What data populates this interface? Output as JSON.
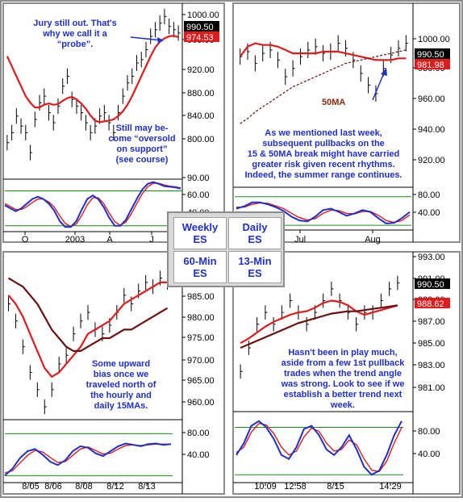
{
  "colors": {
    "price": "#000000",
    "ma_fast": "#e01b1b",
    "ma_slow": "#6b0f0f",
    "osc_blue": "#1f2fc8",
    "osc_red": "#e01b1b",
    "osc_band": "#1a8a1a",
    "annotation": "#1f2fc8",
    "badge_black": "#000000",
    "badge_red": "#e01b1b"
  },
  "legend": {
    "weekly": {
      "line1": "Weekly",
      "line2": "ES"
    },
    "daily": {
      "line1": "Daily",
      "line2": "ES"
    },
    "min60": {
      "line1": "60-Min",
      "line2": "ES"
    },
    "min13": {
      "line1": "13-Min",
      "line2": "ES"
    }
  },
  "chart_data": [
    {
      "type": "line",
      "id": "weekly",
      "title": "",
      "y_ticks": [
        1000.0,
        960.0,
        920.0,
        880.0,
        840.0,
        800.0
      ],
      "ylim": [
        760,
        1020
      ],
      "x_ticks": [
        "O",
        "2003",
        "A",
        "J"
      ],
      "price_badges": [
        "990.50",
        "974.53"
      ],
      "price": [
        815,
        830,
        855,
        840,
        830,
        800,
        850,
        875,
        885,
        860,
        845,
        870,
        900,
        915,
        880,
        870,
        860,
        845,
        830,
        840,
        855,
        860,
        845,
        830,
        860,
        885,
        905,
        915,
        935,
        940,
        955,
        975,
        985,
        995,
        1005,
        990,
        985,
        980
      ],
      "ma": [
        945,
        930,
        915,
        900,
        885,
        875,
        868,
        868,
        872,
        874,
        872,
        873,
        878,
        882,
        884,
        880,
        874,
        866,
        856,
        848,
        846,
        847,
        848,
        850,
        855,
        862,
        872,
        885,
        900,
        915,
        930,
        945,
        958,
        967,
        972,
        975,
        976,
        974
      ],
      "oscillator": {
        "y_ticks": [
          90.0,
          60.0,
          40.0
        ],
        "ylim": [
          10,
          100
        ],
        "upper_band": 80,
        "lower_band": 20,
        "fast": [
          55,
          50,
          45,
          50,
          58,
          66,
          70,
          66,
          58,
          46,
          28,
          18,
          18,
          28,
          48,
          66,
          72,
          66,
          52,
          34,
          20,
          20,
          30,
          48,
          66,
          82,
          92,
          95,
          92,
          88,
          87,
          86,
          84
        ],
        "slow": [
          58,
          53,
          48,
          48,
          53,
          60,
          66,
          66,
          61,
          52,
          37,
          24,
          19,
          23,
          38,
          56,
          68,
          68,
          58,
          42,
          27,
          21,
          26,
          40,
          58,
          75,
          87,
          93,
          93,
          90,
          88,
          87,
          85
        ]
      },
      "annotations": [
        {
          "text": [
            "Jury still out.  That's",
            "why we call it a",
            "“probe”."
          ]
        },
        {
          "text": [
            "Still may be-",
            "come “oversold",
            "on support”",
            "(see course)"
          ]
        }
      ]
    },
    {
      "type": "line",
      "id": "daily",
      "title": "",
      "y_ticks": [
        1000.0,
        980.0,
        960.0,
        940.0,
        920.0
      ],
      "ylim": [
        904,
        1012
      ],
      "x_ticks": [
        "Jul",
        "Aug"
      ],
      "price_badges": [
        "990.50",
        "981.98"
      ],
      "price": [
        982,
        985,
        978,
        984,
        986,
        980,
        970,
        975,
        982,
        986,
        988,
        984,
        985,
        990,
        987,
        980,
        972,
        965,
        960,
        975,
        983,
        987,
        990
      ],
      "ma_fast": [
        982,
        988,
        990,
        989,
        989,
        988,
        986,
        984,
        984,
        984,
        984,
        985,
        985,
        985,
        984,
        983,
        982,
        981,
        980,
        980,
        980,
        981,
        981
      ],
      "ma_slow_label": "50MA",
      "ma_slow": [
        942,
        945,
        949,
        952,
        955,
        958,
        961,
        964,
        966,
        968,
        970,
        972,
        974,
        976,
        978,
        979,
        980,
        981,
        982,
        983,
        984,
        985,
        986
      ],
      "oscillator": {
        "y_ticks": [
          80.0,
          40.0
        ],
        "ylim": [
          10,
          100
        ],
        "upper_band": 80,
        "lower_band": 20,
        "fast": [
          55,
          60,
          68,
          68,
          64,
          58,
          50,
          38,
          30,
          28,
          38,
          52,
          55,
          48,
          40,
          45,
          52,
          48,
          35,
          24,
          25,
          35,
          48
        ],
        "slow": [
          58,
          58,
          64,
          67,
          66,
          61,
          55,
          45,
          36,
          31,
          34,
          45,
          52,
          51,
          45,
          44,
          49,
          49,
          41,
          30,
          26,
          30,
          42
        ]
      },
      "annotations": [
        {
          "text": [
            "As we mentioned last week,",
            "subsequent pullbacks on the",
            "15 & 50MA break might have carried",
            "greater risk given recent rhythms.",
            "Indeed, the summer range continues."
          ]
        }
      ]
    },
    {
      "type": "line",
      "id": "min60",
      "title": "",
      "y_ticks": [
        985.0,
        980.0,
        975.0,
        970.0,
        965.0,
        960.0
      ],
      "ylim": [
        955,
        993
      ],
      "x_ticks": [
        "8/05",
        "8/06",
        "8/08",
        "8/12",
        "8/13"
      ],
      "price": [
        982,
        978,
        972,
        966,
        962,
        958,
        962,
        968,
        970,
        975,
        978,
        980,
        976,
        975,
        977,
        980,
        984,
        982,
        985,
        987,
        986,
        988,
        987
      ],
      "ma_fast": [
        984,
        982,
        979,
        975,
        971,
        967,
        965,
        966,
        968,
        970,
        972,
        975,
        976,
        977,
        978,
        980,
        982,
        983,
        984,
        985,
        986,
        987,
        987
      ],
      "ma_slow": [
        988,
        987,
        986,
        984,
        982,
        979,
        976,
        974,
        972,
        971,
        971,
        972,
        973,
        974,
        974,
        975,
        976,
        976,
        977,
        978,
        979,
        980,
        981
      ],
      "oscillator": {
        "y_ticks": [
          80.0,
          40.0
        ],
        "ylim": [
          10,
          100
        ],
        "upper_band": 80,
        "lower_band": 20,
        "fast": [
          20,
          30,
          45,
          55,
          58,
          50,
          40,
          35,
          42,
          55,
          62,
          60,
          52,
          48,
          55,
          62,
          66,
          64,
          62,
          65,
          66,
          64,
          65
        ],
        "slow": [
          24,
          27,
          38,
          49,
          56,
          54,
          46,
          39,
          40,
          49,
          58,
          61,
          56,
          51,
          52,
          58,
          63,
          64,
          63,
          64,
          65,
          65,
          65
        ]
      },
      "annotations": [
        {
          "text": [
            "Some upward",
            "bias once we",
            "traveled north of",
            "the hourly and",
            "daily 15MAs."
          ]
        }
      ]
    },
    {
      "type": "line",
      "id": "min13",
      "title": "",
      "y_ticks": [
        993.0,
        991.0,
        989.0,
        987.0,
        985.0,
        983.0,
        981.0
      ],
      "ylim": [
        979.6,
        993.0
      ],
      "x_ticks": [
        "10:09",
        "12:58",
        "8/15",
        "14:29"
      ],
      "price_badges": [
        "990.50",
        "988.62"
      ],
      "price": [
        983,
        985,
        987,
        988,
        987,
        988,
        989,
        988,
        987,
        988,
        989,
        990,
        989,
        988,
        987,
        988,
        988,
        989,
        990,
        990.5
      ],
      "ma_fast": [
        985.4,
        985.8,
        986.3,
        986.8,
        987.2,
        987.5,
        987.8,
        988.0,
        988.1,
        988.4,
        988.8,
        989.0,
        988.9,
        988.6,
        988.1,
        987.8,
        988.0,
        988.2,
        988.4,
        988.6
      ],
      "ma_slow": [
        985.0,
        985.3,
        985.6,
        985.9,
        986.2,
        986.5,
        986.8,
        987.1,
        987.3,
        987.5,
        987.7,
        987.9,
        988.0,
        988.1,
        988.1,
        988.2,
        988.3,
        988.4,
        988.5,
        988.6
      ],
      "oscillator": {
        "y_ticks": [
          80.0,
          40.0
        ],
        "ylim": [
          10,
          100
        ],
        "upper_band": 80,
        "lower_band": 20,
        "fast": [
          45,
          60,
          82,
          88,
          80,
          65,
          45,
          40,
          55,
          78,
          82,
          70,
          52,
          45,
          55,
          70,
          52,
          30,
          20,
          25,
          45,
          70,
          88
        ],
        "slow": [
          48,
          55,
          74,
          85,
          83,
          72,
          55,
          45,
          50,
          68,
          79,
          75,
          60,
          50,
          52,
          64,
          58,
          40,
          26,
          24,
          37,
          60,
          80
        ]
      },
      "annotations": [
        {
          "text": [
            "Hasn't been in play much,",
            "aside from a  few 1st pullback",
            "trades when the trend angle",
            "was strong.  Look to see if we",
            "establish a better trend next",
            "week."
          ]
        }
      ]
    }
  ]
}
